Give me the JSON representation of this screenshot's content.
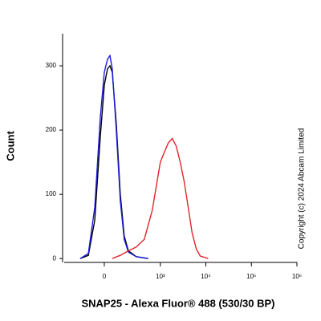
{
  "chart_data": {
    "type": "line",
    "x_label": "SNAP25 - Alexa Fluor® 488 (530/30 BP)",
    "y_label": "Count",
    "annotation": "Copyright (c) 2024 Abcam Limited",
    "xscale": "asinh",
    "xlim": [
      -440,
      1000000
    ],
    "xticks": [
      0,
      {
        "value": 1000,
        "label": "10³"
      },
      {
        "value": 10000,
        "label": "10⁴"
      },
      {
        "value": 100000,
        "label": "10⁵"
      },
      {
        "value": 1000000,
        "label": "10⁶"
      }
    ],
    "ylim": [
      -6,
      350
    ],
    "yticks": [
      0,
      100,
      200,
      300
    ],
    "series": [
      {
        "color": "#000000",
        "x": [
          -182,
          -106,
          -59,
          -24,
          0,
          19,
          34,
          49,
          76,
          106,
          140,
          182,
          285,
          537
        ],
        "values": [
          0,
          5,
          60,
          190,
          270,
          295,
          300,
          290,
          210,
          100,
          35,
          12,
          3,
          0
        ]
      },
      {
        "color": "#1a1adc",
        "x": [
          -182,
          -106,
          -59,
          -24,
          0,
          19,
          34,
          49,
          76,
          106,
          140,
          182,
          285,
          537
        ],
        "values": [
          0,
          8,
          80,
          220,
          290,
          310,
          316,
          295,
          200,
          90,
          30,
          10,
          3,
          0
        ]
      },
      {
        "color": "#e0262b",
        "x": [
          49,
          106,
          182,
          285,
          437,
          661,
          1000,
          1215,
          1494,
          1829,
          2237,
          2738,
          3351,
          4095,
          5003,
          6171,
          7528,
          11245
        ],
        "values": [
          0,
          5,
          12,
          18,
          30,
          75,
          150,
          165,
          180,
          187,
          175,
          150,
          120,
          80,
          40,
          15,
          4,
          0
        ]
      }
    ]
  }
}
